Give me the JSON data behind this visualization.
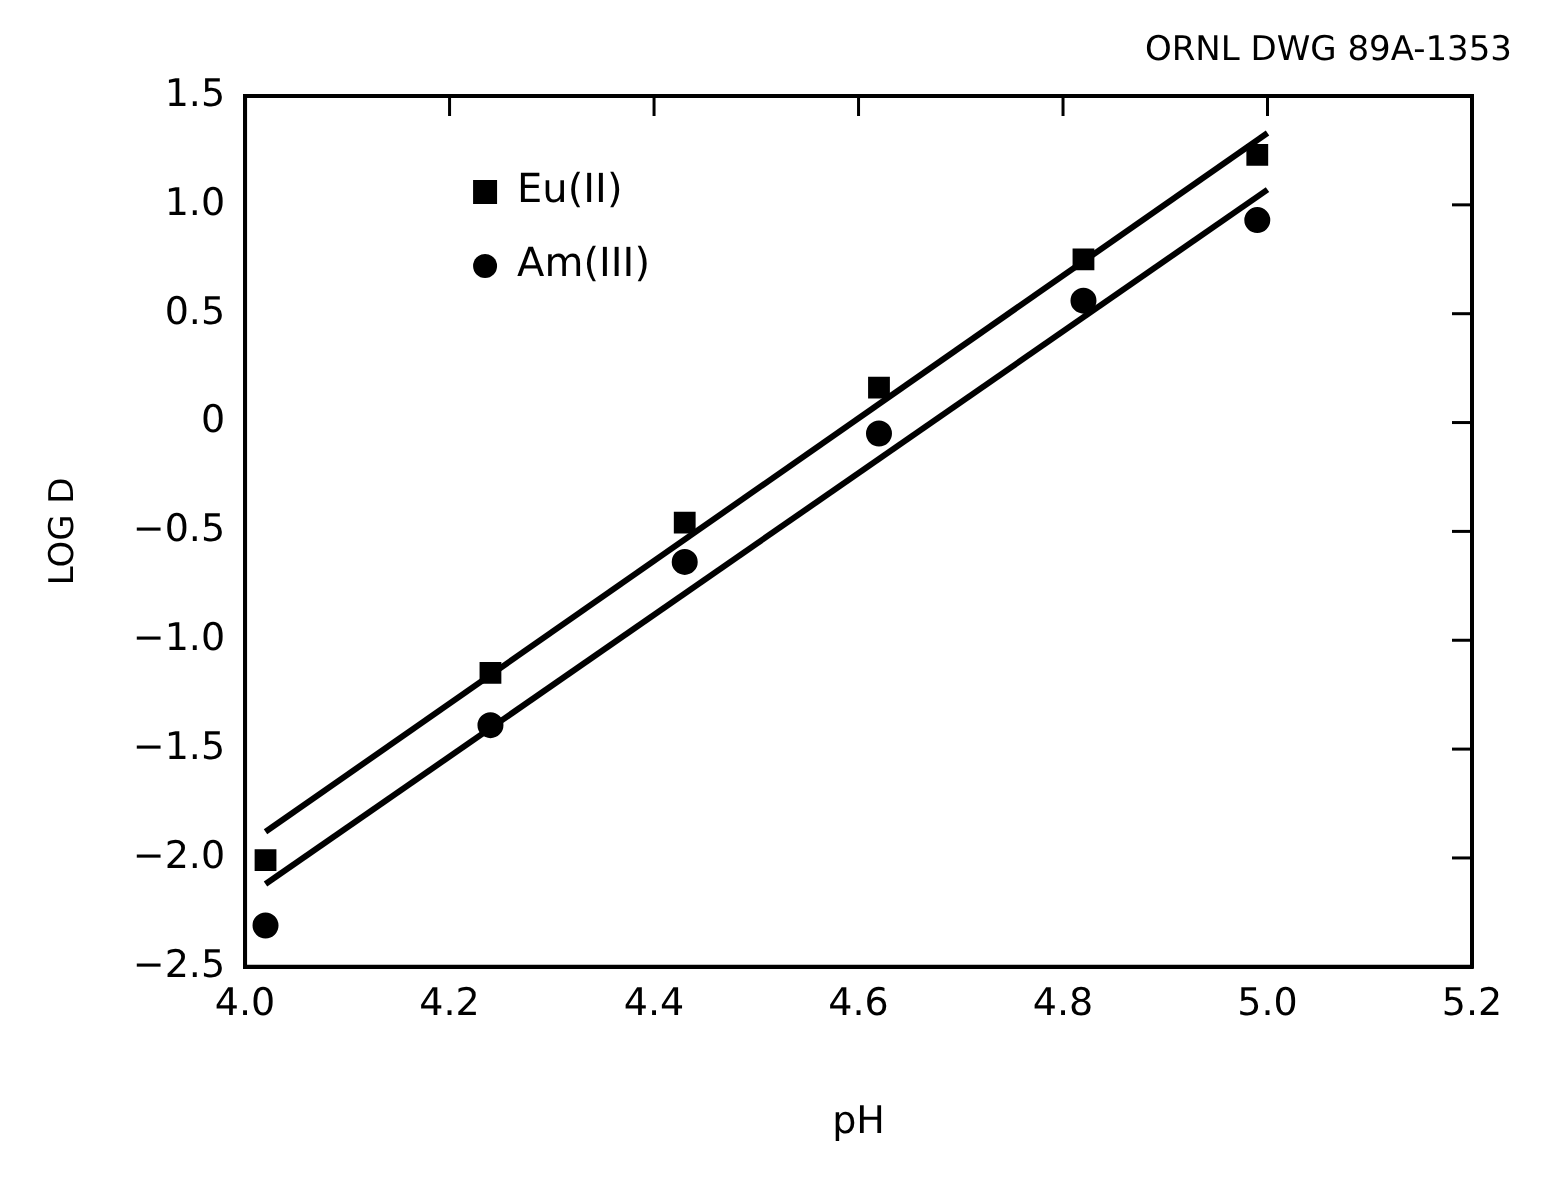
{
  "chart_data": {
    "type": "scatter",
    "xlabel": "pH",
    "ylabel": "LOG D",
    "annotations": [
      "ORNL DWG 89A-1353"
    ],
    "xlim": [
      4.0,
      5.2
    ],
    "xticks": [
      {
        "value": 4.0,
        "label": "4.0"
      },
      {
        "value": 4.2,
        "label": "4.2"
      },
      {
        "value": 4.4,
        "label": "4.4"
      },
      {
        "value": 4.6,
        "label": "4.6"
      },
      {
        "value": 4.8,
        "label": "4.8"
      },
      {
        "value": 5.0,
        "label": "5.0"
      },
      {
        "value": 5.2,
        "label": "5.2"
      }
    ],
    "ylim": [
      -2.5,
      1.5
    ],
    "yticks": [
      {
        "value": -2.5,
        "label": "−2.5"
      },
      {
        "value": -2.0,
        "label": "−2.0"
      },
      {
        "value": -1.5,
        "label": "−1.5"
      },
      {
        "value": -1.0,
        "label": "−1.0"
      },
      {
        "value": -0.5,
        "label": "−0.5"
      },
      0,
      {
        "value": 0.5,
        "label": "0.5"
      },
      {
        "value": 1.0,
        "label": "1.0"
      },
      {
        "value": 1.5,
        "label": "1.5"
      }
    ],
    "grid": false,
    "legend": "top left",
    "series": [
      {
        "name": "Eu(II)",
        "type": "scatter",
        "marker": "square",
        "color": "#000000",
        "x": [
          4.02,
          4.24,
          4.43,
          4.62,
          4.82,
          4.99
        ],
        "values": [
          -2.01,
          -1.15,
          -0.46,
          0.16,
          0.75,
          1.23
        ]
      },
      {
        "name": "Am(III)",
        "type": "scatter",
        "marker": "circle",
        "color": "#000000",
        "x": [
          4.02,
          4.24,
          4.43,
          4.62,
          4.82,
          4.99
        ],
        "values": [
          -2.31,
          -1.39,
          -0.64,
          -0.05,
          0.56,
          0.93
        ]
      },
      {
        "type": "line",
        "marker": "none",
        "line_style": "solid",
        "color": "#000000",
        "x": [
          4.02,
          5.0
        ],
        "values": [
          -1.88,
          1.33
        ]
      },
      {
        "type": "line",
        "marker": "none",
        "line_style": "solid",
        "color": "#000000",
        "x": [
          4.02,
          5.0
        ],
        "values": [
          -2.12,
          1.07
        ]
      }
    ]
  }
}
